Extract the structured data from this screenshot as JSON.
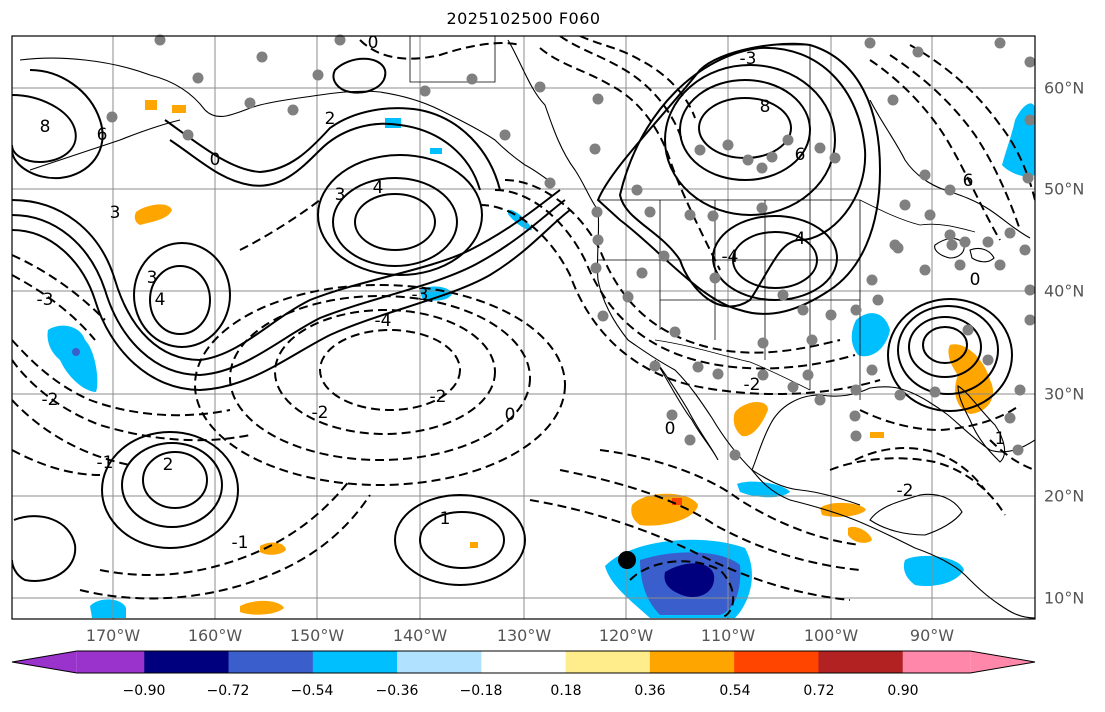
{
  "title": "2025102500 F060",
  "map": {
    "projection": "plate-carree",
    "lon_range": [
      -178,
      -78
    ],
    "lat_range": [
      8,
      66
    ],
    "gridlines": true,
    "land_outline_color": "#000000",
    "contour_color": "#000000",
    "marker_color": "#808080",
    "highlight_marker_color": "#000000"
  },
  "lon_labels": [
    "170°W",
    "160°W",
    "150°W",
    "140°W",
    "130°W",
    "120°W",
    "110°W",
    "100°W",
    "90°W"
  ],
  "lat_labels": [
    "60°N",
    "50°N",
    "40°N",
    "30°N",
    "20°N",
    "10°N"
  ],
  "contour_labels": [
    "0",
    "0",
    "-1",
    "-1",
    "-2",
    "-2",
    "-2",
    "-2",
    "-2",
    "-3",
    "-3",
    "-4",
    "-4",
    "2",
    "2",
    "3",
    "3",
    "3",
    "4",
    "4",
    "4",
    "6",
    "6",
    "6",
    "8",
    "8",
    "1",
    "1",
    "0",
    "0",
    "0",
    "-3"
  ],
  "colorbar": {
    "ticks": [
      "−0.90",
      "−0.72",
      "−0.54",
      "−0.36",
      "−0.18",
      "0.18",
      "0.36",
      "0.54",
      "0.72",
      "0.90"
    ],
    "colors": [
      "#9933cc",
      "#00007f",
      "#3a5fcd",
      "#00bfff",
      "#b0e2ff",
      "#ffffff",
      "#ffec8b",
      "#ffa500",
      "#ff4500",
      "#b22222",
      "#ff88aa"
    ],
    "extend": "both"
  }
}
